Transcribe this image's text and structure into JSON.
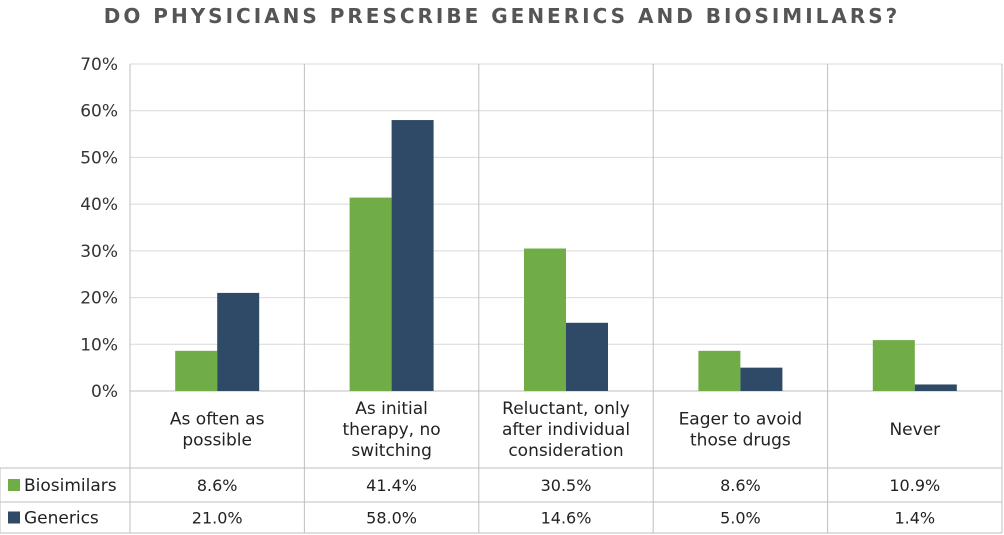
{
  "chart_data": {
    "type": "bar",
    "title": "DO PHYSICIANS PRESCRIBE GENERICS AND BIOSIMILARS?",
    "categories": [
      [
        "As often as",
        "possible"
      ],
      [
        "As initial",
        "therapy, no",
        "switching"
      ],
      [
        "Reluctant, only",
        "after individual",
        "consideration"
      ],
      [
        "Eager to avoid",
        "those drugs"
      ],
      [
        "Never"
      ]
    ],
    "series": [
      {
        "name": "Biosimilars",
        "color": "#70ad47",
        "values": [
          8.6,
          41.4,
          30.5,
          8.6,
          10.9
        ],
        "labels": [
          "8.6%",
          "41.4%",
          "30.5%",
          "8.6%",
          "10.9%"
        ]
      },
      {
        "name": "Generics",
        "color": "#2e4a66",
        "values": [
          21.0,
          58.0,
          14.6,
          5.0,
          1.4
        ],
        "labels": [
          "21.0%",
          "58.0%",
          "14.6%",
          "5.0%",
          "1.4%"
        ]
      }
    ],
    "ylim": [
      0,
      70
    ],
    "yticks": [
      "0%",
      "10%",
      "20%",
      "30%",
      "40%",
      "50%",
      "60%",
      "70%"
    ],
    "grid": true,
    "legend": "data-table"
  }
}
